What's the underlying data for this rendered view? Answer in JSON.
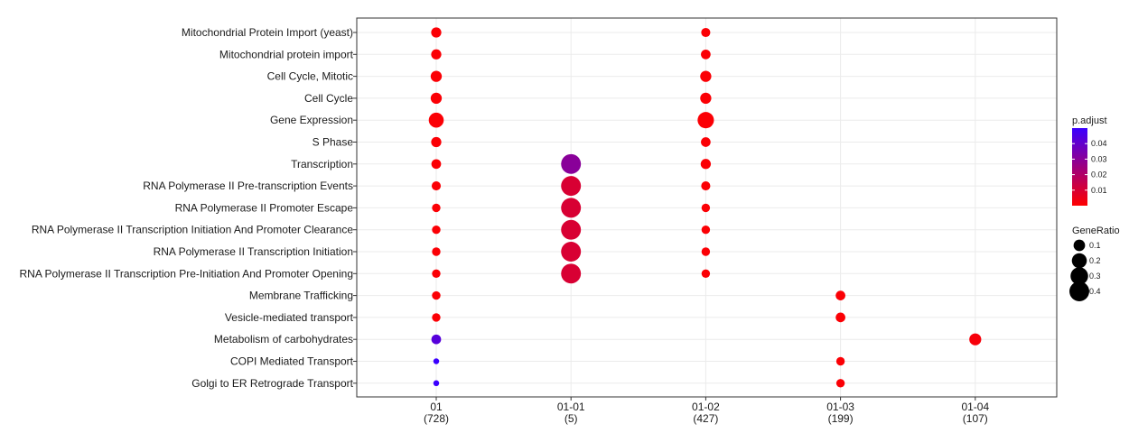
{
  "chart_data": {
    "type": "scatter",
    "categories_y": [
      "Mitochondrial Protein Import (yeast)",
      "Mitochondrial protein import",
      "Cell Cycle, Mitotic",
      "Cell Cycle",
      "Gene Expression",
      "S Phase",
      "Transcription",
      "RNA Polymerase II Pre-transcription Events",
      "RNA Polymerase II Promoter Escape",
      "RNA Polymerase II Transcription Initiation And Promoter Clearance",
      "RNA Polymerase II Transcription Initiation",
      "RNA Polymerase II Transcription Pre-Initiation And Promoter Opening",
      "Membrane Trafficking",
      "Vesicle-mediated transport",
      "Metabolism of carbohydrates",
      "COPI Mediated Transport",
      "Golgi to ER Retrograde Transport"
    ],
    "categories_x": [
      {
        "label": "01",
        "count": "(728)"
      },
      {
        "label": "01-01",
        "count": "(5)"
      },
      {
        "label": "01-02",
        "count": "(427)"
      },
      {
        "label": "01-03",
        "count": "(199)"
      },
      {
        "label": "01-04",
        "count": "(107)"
      }
    ],
    "points": [
      {
        "x": "01",
        "y": "Mitochondrial Protein Import (yeast)",
        "gene_ratio": 0.07,
        "p_adjust": 0.001
      },
      {
        "x": "01",
        "y": "Mitochondrial protein import",
        "gene_ratio": 0.07,
        "p_adjust": 0.001
      },
      {
        "x": "01",
        "y": "Cell Cycle, Mitotic",
        "gene_ratio": 0.09,
        "p_adjust": 0.001
      },
      {
        "x": "01",
        "y": "Cell Cycle",
        "gene_ratio": 0.09,
        "p_adjust": 0.001
      },
      {
        "x": "01",
        "y": "Gene Expression",
        "gene_ratio": 0.2,
        "p_adjust": 0.001
      },
      {
        "x": "01",
        "y": "S Phase",
        "gene_ratio": 0.07,
        "p_adjust": 0.001
      },
      {
        "x": "01",
        "y": "Transcription",
        "gene_ratio": 0.06,
        "p_adjust": 0.001
      },
      {
        "x": "01",
        "y": "RNA Polymerase II Pre-transcription Events",
        "gene_ratio": 0.05,
        "p_adjust": 0.001
      },
      {
        "x": "01",
        "y": "RNA Polymerase II Promoter Escape",
        "gene_ratio": 0.04,
        "p_adjust": 0.001
      },
      {
        "x": "01",
        "y": "RNA Polymerase II Transcription Initiation And Promoter Clearance",
        "gene_ratio": 0.04,
        "p_adjust": 0.001
      },
      {
        "x": "01",
        "y": "RNA Polymerase II Transcription Initiation",
        "gene_ratio": 0.04,
        "p_adjust": 0.001
      },
      {
        "x": "01",
        "y": "RNA Polymerase II Transcription Pre-Initiation And Promoter Opening",
        "gene_ratio": 0.04,
        "p_adjust": 0.001
      },
      {
        "x": "01",
        "y": "Membrane Trafficking",
        "gene_ratio": 0.04,
        "p_adjust": 0.001
      },
      {
        "x": "01",
        "y": "Vesicle-mediated transport",
        "gene_ratio": 0.04,
        "p_adjust": 0.001
      },
      {
        "x": "01",
        "y": "Metabolism of carbohydrates",
        "gene_ratio": 0.06,
        "p_adjust": 0.043
      },
      {
        "x": "01",
        "y": "COPI Mediated Transport",
        "gene_ratio": 0.01,
        "p_adjust": 0.05
      },
      {
        "x": "01",
        "y": "Golgi to ER Retrograde Transport",
        "gene_ratio": 0.01,
        "p_adjust": 0.05
      },
      {
        "x": "01-01",
        "y": "Transcription",
        "gene_ratio": 0.4,
        "p_adjust": 0.03
      },
      {
        "x": "01-01",
        "y": "RNA Polymerase II Pre-transcription Events",
        "gene_ratio": 0.4,
        "p_adjust": 0.01
      },
      {
        "x": "01-01",
        "y": "RNA Polymerase II Promoter Escape",
        "gene_ratio": 0.4,
        "p_adjust": 0.01
      },
      {
        "x": "01-01",
        "y": "RNA Polymerase II Transcription Initiation And Promoter Clearance",
        "gene_ratio": 0.4,
        "p_adjust": 0.01
      },
      {
        "x": "01-01",
        "y": "RNA Polymerase II Transcription Initiation",
        "gene_ratio": 0.4,
        "p_adjust": 0.01
      },
      {
        "x": "01-01",
        "y": "RNA Polymerase II Transcription Pre-Initiation And Promoter Opening",
        "gene_ratio": 0.4,
        "p_adjust": 0.01
      },
      {
        "x": "01-02",
        "y": "Mitochondrial Protein Import (yeast)",
        "gene_ratio": 0.05,
        "p_adjust": 0.001
      },
      {
        "x": "01-02",
        "y": "Mitochondrial protein import",
        "gene_ratio": 0.06,
        "p_adjust": 0.001
      },
      {
        "x": "01-02",
        "y": "Cell Cycle, Mitotic",
        "gene_ratio": 0.09,
        "p_adjust": 0.001
      },
      {
        "x": "01-02",
        "y": "Cell Cycle",
        "gene_ratio": 0.09,
        "p_adjust": 0.001
      },
      {
        "x": "01-02",
        "y": "Gene Expression",
        "gene_ratio": 0.25,
        "p_adjust": 0.001
      },
      {
        "x": "01-02",
        "y": "S Phase",
        "gene_ratio": 0.06,
        "p_adjust": 0.001
      },
      {
        "x": "01-02",
        "y": "Transcription",
        "gene_ratio": 0.07,
        "p_adjust": 0.001
      },
      {
        "x": "01-02",
        "y": "RNA Polymerase II Pre-transcription Events",
        "gene_ratio": 0.05,
        "p_adjust": 0.001
      },
      {
        "x": "01-02",
        "y": "RNA Polymerase II Promoter Escape",
        "gene_ratio": 0.04,
        "p_adjust": 0.001
      },
      {
        "x": "01-02",
        "y": "RNA Polymerase II Transcription Initiation And Promoter Clearance",
        "gene_ratio": 0.04,
        "p_adjust": 0.001
      },
      {
        "x": "01-02",
        "y": "RNA Polymerase II Transcription Initiation",
        "gene_ratio": 0.04,
        "p_adjust": 0.001
      },
      {
        "x": "01-02",
        "y": "RNA Polymerase II Transcription Pre-Initiation And Promoter Opening",
        "gene_ratio": 0.04,
        "p_adjust": 0.001
      },
      {
        "x": "01-03",
        "y": "Membrane Trafficking",
        "gene_ratio": 0.06,
        "p_adjust": 0.001
      },
      {
        "x": "01-03",
        "y": "Vesicle-mediated transport",
        "gene_ratio": 0.06,
        "p_adjust": 0.001
      },
      {
        "x": "01-03",
        "y": "COPI Mediated Transport",
        "gene_ratio": 0.04,
        "p_adjust": 0.001
      },
      {
        "x": "01-03",
        "y": "Golgi to ER Retrograde Transport",
        "gene_ratio": 0.04,
        "p_adjust": 0.001
      },
      {
        "x": "01-04",
        "y": "Metabolism of carbohydrates",
        "gene_ratio": 0.11,
        "p_adjust": 0.002
      }
    ],
    "color_legend": {
      "title": "p.adjust",
      "ticks": [
        "0.04",
        "0.03",
        "0.02",
        "0.01"
      ],
      "tick_values": [
        0.04,
        0.03,
        0.02,
        0.01
      ],
      "range": [
        0,
        0.05
      ],
      "low_color": "#ff0000",
      "high_color": "#3b00ff"
    },
    "size_legend": {
      "title": "GeneRatio",
      "labels": [
        "0.1",
        "0.2",
        "0.3",
        "0.4"
      ],
      "values": [
        0.1,
        0.2,
        0.3,
        0.4
      ]
    },
    "grid": true,
    "panel_border": true
  }
}
